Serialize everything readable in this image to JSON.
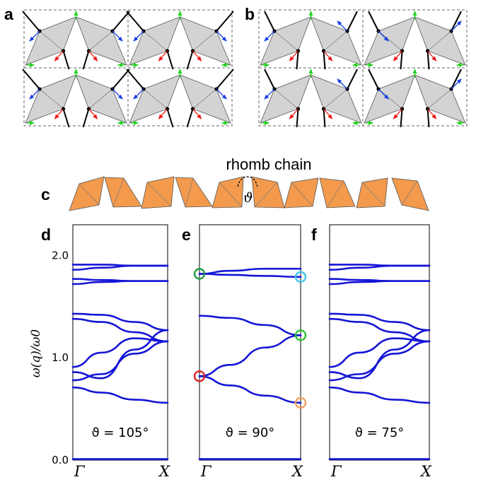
{
  "panels": {
    "a": "a",
    "b": "b",
    "c": "c",
    "d": "d",
    "e": "e",
    "f": "f"
  },
  "rhomb_chain": {
    "title": "rhomb chain",
    "angle_symbol": "ϑ"
  },
  "colors": {
    "rhomb_gray": "#d3d3d3",
    "rhomb_orange": "#f39a4d",
    "band_blue": "#1515d6",
    "arrow_red": "#ee1111",
    "arrow_blue": "#1740e6",
    "arrow_green": "#1ed31e"
  },
  "chart_data": [
    {
      "type": "line",
      "panel": "d",
      "annotation": "ϑ = 105°",
      "ylabel": "ω(q)/ω0",
      "yticks": [
        "0.0",
        "1.0",
        "2.0"
      ],
      "xticks": [
        "Γ",
        "X"
      ],
      "ylim": [
        0,
        2.3
      ],
      "series": [
        {
          "values": [
            [
              0,
              0.01
            ],
            [
              1,
              0.01
            ]
          ]
        },
        {
          "values": [
            [
              0,
              0.71
            ],
            [
              0.3,
              0.66
            ],
            [
              0.65,
              0.59
            ],
            [
              1,
              0.56
            ]
          ]
        },
        {
          "values": [
            [
              0,
              0.78
            ],
            [
              0.3,
              0.84
            ],
            [
              0.65,
              1.04
            ],
            [
              1,
              1.16
            ]
          ]
        },
        {
          "values": [
            [
              0,
              0.86
            ],
            [
              0.3,
              0.8
            ],
            [
              0.65,
              1.08
            ],
            [
              1,
              1.27
            ]
          ]
        },
        {
          "values": [
            [
              0,
              0.91
            ],
            [
              0.3,
              1.05
            ],
            [
              0.65,
              1.19
            ],
            [
              1,
              1.16
            ]
          ]
        },
        {
          "values": [
            [
              0,
              1.38
            ],
            [
              0.3,
              1.35
            ],
            [
              0.65,
              1.25
            ],
            [
              1,
              1.16
            ]
          ]
        },
        {
          "values": [
            [
              0,
              1.43
            ],
            [
              0.3,
              1.42
            ],
            [
              0.65,
              1.35
            ],
            [
              1,
              1.27
            ]
          ]
        },
        {
          "values": [
            [
              0,
              1.72
            ],
            [
              0.3,
              1.74
            ],
            [
              0.65,
              1.75
            ],
            [
              1,
              1.75
            ]
          ]
        },
        {
          "values": [
            [
              0,
              1.77
            ],
            [
              0.3,
              1.76
            ],
            [
              0.65,
              1.75
            ],
            [
              1,
              1.75
            ]
          ]
        },
        {
          "values": [
            [
              0,
              1.86
            ],
            [
              0.3,
              1.88
            ],
            [
              0.65,
              1.9
            ],
            [
              1,
              1.9
            ]
          ]
        },
        {
          "values": [
            [
              0,
              1.91
            ],
            [
              0.3,
              1.91
            ],
            [
              0.65,
              1.9
            ],
            [
              1,
              1.9
            ]
          ]
        }
      ]
    },
    {
      "type": "line",
      "panel": "e",
      "annotation": "ϑ = 90°",
      "xticks": [
        "Γ",
        "X"
      ],
      "ylim": [
        0,
        2.3
      ],
      "series": [
        {
          "values": [
            [
              0,
              0.01
            ],
            [
              1,
              0.01
            ]
          ]
        },
        {
          "values": [
            [
              0,
              0.82
            ],
            [
              0.3,
              0.73
            ],
            [
              0.65,
              0.63
            ],
            [
              1,
              0.56
            ]
          ]
        },
        {
          "values": [
            [
              0,
              0.82
            ],
            [
              0.3,
              0.93
            ],
            [
              0.65,
              1.1
            ],
            [
              1,
              1.22
            ]
          ]
        },
        {
          "values": [
            [
              0,
              1.41
            ],
            [
              0.3,
              1.39
            ],
            [
              0.65,
              1.32
            ],
            [
              1,
              1.22
            ]
          ]
        },
        {
          "values": [
            [
              0,
              1.82
            ],
            [
              0.3,
              1.81
            ],
            [
              0.65,
              1.8
            ],
            [
              1,
              1.79
            ]
          ]
        },
        {
          "values": [
            [
              0,
              1.82
            ],
            [
              0.3,
              1.85
            ],
            [
              0.65,
              1.87
            ],
            [
              1,
              1.87
            ]
          ]
        }
      ],
      "markers": [
        {
          "x": 0,
          "y": 0.82,
          "color": "#e02222"
        },
        {
          "x": 0,
          "y": 1.82,
          "color": "#1c9a3c"
        },
        {
          "x": 1,
          "y": 1.79,
          "color": "#3ec5ee"
        },
        {
          "x": 1,
          "y": 1.22,
          "color": "#2ec42e"
        },
        {
          "x": 1,
          "y": 0.56,
          "color": "#f0a060"
        }
      ]
    },
    {
      "type": "line",
      "panel": "f",
      "annotation": "ϑ = 75°",
      "xticks": [
        "Γ",
        "X"
      ],
      "ylim": [
        0,
        2.3
      ],
      "series": [
        {
          "values": [
            [
              0,
              0.01
            ],
            [
              1,
              0.01
            ]
          ]
        },
        {
          "values": [
            [
              0,
              0.71
            ],
            [
              0.3,
              0.66
            ],
            [
              0.65,
              0.59
            ],
            [
              1,
              0.56
            ]
          ]
        },
        {
          "values": [
            [
              0,
              0.78
            ],
            [
              0.3,
              0.84
            ],
            [
              0.65,
              1.04
            ],
            [
              1,
              1.16
            ]
          ]
        },
        {
          "values": [
            [
              0,
              0.86
            ],
            [
              0.3,
              0.8
            ],
            [
              0.65,
              1.08
            ],
            [
              1,
              1.27
            ]
          ]
        },
        {
          "values": [
            [
              0,
              0.91
            ],
            [
              0.3,
              1.05
            ],
            [
              0.65,
              1.19
            ],
            [
              1,
              1.16
            ]
          ]
        },
        {
          "values": [
            [
              0,
              1.38
            ],
            [
              0.3,
              1.35
            ],
            [
              0.65,
              1.25
            ],
            [
              1,
              1.16
            ]
          ]
        },
        {
          "values": [
            [
              0,
              1.43
            ],
            [
              0.3,
              1.42
            ],
            [
              0.65,
              1.35
            ],
            [
              1,
              1.27
            ]
          ]
        },
        {
          "values": [
            [
              0,
              1.72
            ],
            [
              0.3,
              1.74
            ],
            [
              0.65,
              1.75
            ],
            [
              1,
              1.75
            ]
          ]
        },
        {
          "values": [
            [
              0,
              1.77
            ],
            [
              0.3,
              1.76
            ],
            [
              0.65,
              1.75
            ],
            [
              1,
              1.75
            ]
          ]
        },
        {
          "values": [
            [
              0,
              1.86
            ],
            [
              0.3,
              1.88
            ],
            [
              0.65,
              1.9
            ],
            [
              1,
              1.9
            ]
          ]
        },
        {
          "values": [
            [
              0,
              1.91
            ],
            [
              0.3,
              1.91
            ],
            [
              0.65,
              1.9
            ],
            [
              1,
              1.9
            ]
          ]
        }
      ]
    }
  ]
}
